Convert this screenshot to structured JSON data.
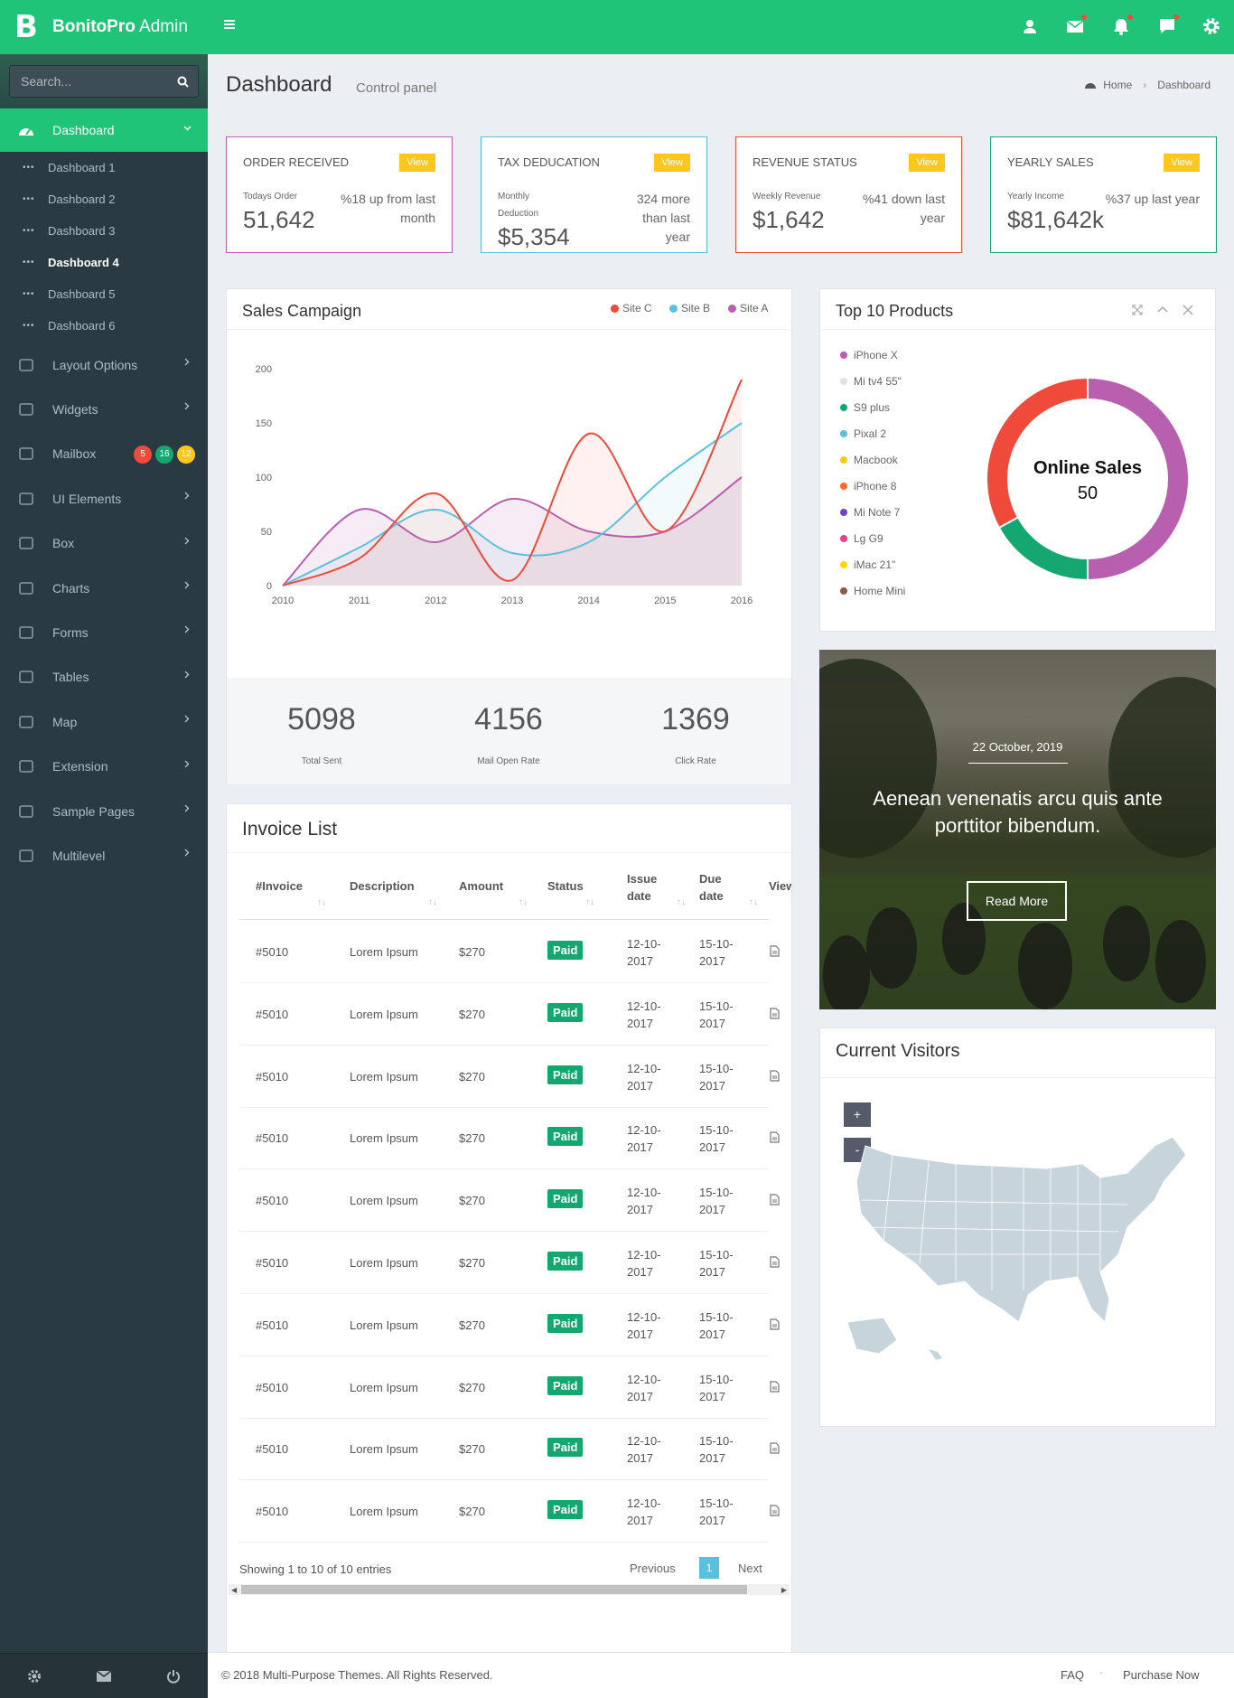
{
  "app": {
    "logo_letter": "B",
    "brand_bold": "BonitoPro",
    "brand_rest": " Admin"
  },
  "search": {
    "placeholder": "Search..."
  },
  "sidebar": {
    "active": "Dashboard",
    "subitems": [
      "Dashboard 1",
      "Dashboard 2",
      "Dashboard 3",
      "Dashboard 4",
      "Dashboard 5",
      "Dashboard 6"
    ],
    "items": [
      "Layout Options",
      "Widgets",
      "Mailbox",
      "UI Elements",
      "Box",
      "Charts",
      "Forms",
      "Tables",
      "Map",
      "Extension",
      "Sample Pages",
      "Multilevel"
    ],
    "mailbox_badges": [
      "5",
      "16",
      "12"
    ]
  },
  "page": {
    "title": "Dashboard",
    "subtitle": "Control panel",
    "breadcrumb": [
      "Home",
      "Dashboard"
    ]
  },
  "stats": [
    {
      "title": "ORDER RECEIVED",
      "view": "View",
      "label": "Todays Order",
      "value": "51,642",
      "change": "%18 up from last month",
      "color": "#c45db9"
    },
    {
      "title": "TAX DEDUCATION",
      "view": "View",
      "label": "Monthly Deduction",
      "value": "$5,354",
      "change": "324 more than last year",
      "color": "#5bc0de"
    },
    {
      "title": "REVENUE STATUS",
      "view": "View",
      "label": "Weekly Revenue",
      "value": "$1,642",
      "change": "%41 down last year",
      "color": "#ef4a3a"
    },
    {
      "title": "YEARLY SALES",
      "view": "View",
      "label": "Yearly Income",
      "value": "$81,642k",
      "change": "%37 up last year",
      "color": "#14a870"
    }
  ],
  "sales": {
    "title": "Sales Campaign",
    "kpis": [
      {
        "value": "5098",
        "label": "Total Sent"
      },
      {
        "value": "4156",
        "label": "Mail Open Rate"
      },
      {
        "value": "1369",
        "label": "Click Rate"
      }
    ]
  },
  "chart_data": {
    "type": "line",
    "title": "Sales Campaign",
    "x": [
      2010,
      2011,
      2012,
      2013,
      2014,
      2015,
      2016
    ],
    "ylim": [
      0,
      200
    ],
    "yticks": [
      0,
      50,
      100,
      150,
      200
    ],
    "series": [
      {
        "name": "Site C",
        "color": "#ef4a3a",
        "values": [
          0,
          25,
          85,
          5,
          140,
          50,
          190
        ]
      },
      {
        "name": "Site B",
        "color": "#5bc0de",
        "values": [
          0,
          35,
          70,
          30,
          40,
          100,
          150
        ]
      },
      {
        "name": "Site A",
        "color": "#b85fb0",
        "values": [
          0,
          70,
          40,
          80,
          50,
          50,
          100
        ]
      }
    ],
    "legend": "top-right"
  },
  "products": {
    "title": "Top 10 Products",
    "items": [
      {
        "name": "iPhone X",
        "color": "#b85fb0"
      },
      {
        "name": "Mi tv4 55\"",
        "color": "#e2e2e2"
      },
      {
        "name": "S9 plus",
        "color": "#14a870"
      },
      {
        "name": "Pixal 2",
        "color": "#5bc0de"
      },
      {
        "name": "Macbook",
        "color": "#ffc61b"
      },
      {
        "name": "iPhone 8",
        "color": "#ff6a2b"
      },
      {
        "name": "Mi Note 7",
        "color": "#6f42c1"
      },
      {
        "name": "Lg G9",
        "color": "#e83e8c"
      },
      {
        "name": "iMac 21\"",
        "color": "#ffd600"
      },
      {
        "name": "Home Mini",
        "color": "#8a5c44"
      }
    ],
    "donut": {
      "title": "Online Sales",
      "value": "50",
      "segments": [
        {
          "value": 50,
          "color": "#b85fb0"
        },
        {
          "value": 17,
          "color": "#14a870"
        },
        {
          "value": 33,
          "color": "#ef4a3a"
        }
      ]
    }
  },
  "promo": {
    "date": "22 October, 2019",
    "headline": "Aenean venenatis arcu quis ante porttitor bibendum.",
    "button": "Read More"
  },
  "visitors": {
    "title": "Current Visitors",
    "zoom_in": "+",
    "zoom_out": "-"
  },
  "invoice": {
    "title": "Invoice List",
    "columns": [
      "#Invoice",
      "Description",
      "Amount",
      "Status",
      "Issue date",
      "Due date",
      "View"
    ],
    "rows": [
      [
        "#5010",
        "Lorem Ipsum",
        "$270",
        "Paid",
        "12-10-2017",
        "15-10-2017"
      ],
      [
        "#5010",
        "Lorem Ipsum",
        "$270",
        "Paid",
        "12-10-2017",
        "15-10-2017"
      ],
      [
        "#5010",
        "Lorem Ipsum",
        "$270",
        "Paid",
        "12-10-2017",
        "15-10-2017"
      ],
      [
        "#5010",
        "Lorem Ipsum",
        "$270",
        "Paid",
        "12-10-2017",
        "15-10-2017"
      ],
      [
        "#5010",
        "Lorem Ipsum",
        "$270",
        "Paid",
        "12-10-2017",
        "15-10-2017"
      ],
      [
        "#5010",
        "Lorem Ipsum",
        "$270",
        "Paid",
        "12-10-2017",
        "15-10-2017"
      ],
      [
        "#5010",
        "Lorem Ipsum",
        "$270",
        "Paid",
        "12-10-2017",
        "15-10-2017"
      ],
      [
        "#5010",
        "Lorem Ipsum",
        "$270",
        "Paid",
        "12-10-2017",
        "15-10-2017"
      ],
      [
        "#5010",
        "Lorem Ipsum",
        "$270",
        "Paid",
        "12-10-2017",
        "15-10-2017"
      ],
      [
        "#5010",
        "Lorem Ipsum",
        "$270",
        "Paid",
        "12-10-2017",
        "15-10-2017"
      ]
    ],
    "showing": "Showing 1 to 10 of 10 entries",
    "previous": "Previous",
    "page": "1",
    "next": "Next"
  },
  "footer": {
    "copyright": "© 2018 Multi-Purpose Themes. All Rights Reserved.",
    "links": [
      "FAQ",
      "Purchase Now"
    ]
  },
  "icons": [
    "user-icon",
    "mail-icon",
    "bell-icon",
    "chat-icon",
    "gear-icon",
    "search-icon",
    "dashboard-icon",
    "chevron-right-icon",
    "file-icon"
  ]
}
